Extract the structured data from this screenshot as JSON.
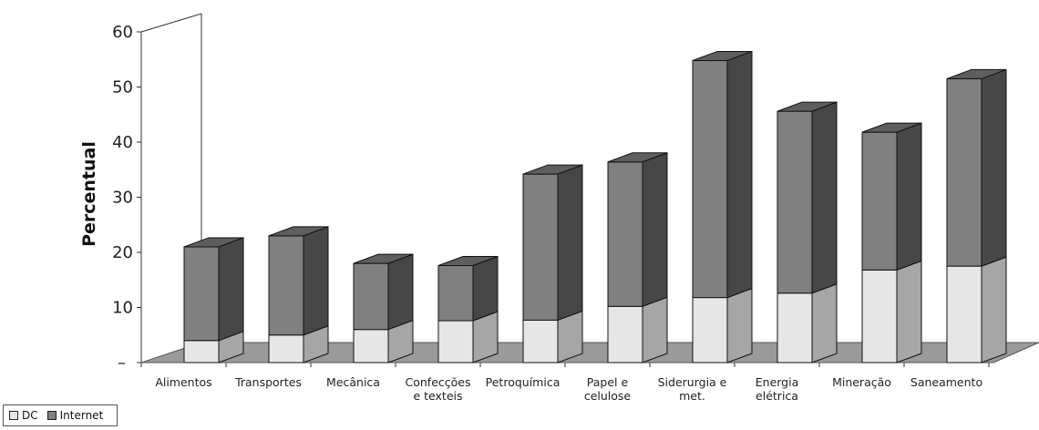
{
  "chart_data": {
    "type": "bar",
    "stacked": true,
    "three_d": true,
    "title": "",
    "xlabel": "",
    "ylabel": "Percentual",
    "ylim": [
      0,
      60
    ],
    "yticks": [
      10,
      20,
      30,
      40,
      50,
      60
    ],
    "zero_tick_label": "–",
    "grid": false,
    "legend_position": "bottom-left",
    "categories": [
      [
        "Alimentos"
      ],
      [
        "Transportes"
      ],
      [
        "Mecânica"
      ],
      [
        "Confecções",
        "e texteis"
      ],
      [
        "Petroquímica"
      ],
      [
        "Papel e",
        "celulose"
      ],
      [
        "Siderurgia e",
        "met."
      ],
      [
        "Energia",
        "elétrica"
      ],
      [
        "Mineração"
      ],
      [
        "Saneamento"
      ]
    ],
    "series": [
      {
        "name": "DC",
        "color": "#e6e6e6",
        "side_color": "#a6a6a6",
        "values": [
          4,
          5,
          6,
          7.6,
          7.7,
          10.2,
          11.8,
          12.6,
          16.8,
          17.5
        ]
      },
      {
        "name": "Internet",
        "color": "#808080",
        "side_color": "#474747",
        "values": [
          17,
          18,
          12,
          10,
          26.5,
          26.2,
          43,
          33,
          25,
          34
        ]
      }
    ]
  }
}
